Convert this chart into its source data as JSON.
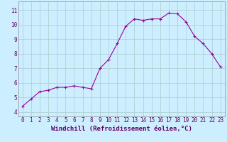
{
  "x": [
    0,
    1,
    2,
    3,
    4,
    5,
    6,
    7,
    8,
    9,
    10,
    11,
    12,
    13,
    14,
    15,
    16,
    17,
    18,
    19,
    20,
    21,
    22,
    23
  ],
  "y": [
    4.4,
    4.9,
    5.4,
    5.5,
    5.7,
    5.7,
    5.8,
    5.7,
    5.6,
    7.0,
    7.6,
    8.7,
    9.9,
    10.4,
    10.3,
    10.4,
    10.4,
    10.8,
    10.75,
    10.2,
    9.2,
    8.7,
    8.0,
    7.1
  ],
  "line_color": "#990099",
  "marker": "+",
  "marker_size": 3,
  "marker_lw": 0.8,
  "line_width": 0.8,
  "bg_color": "#cceeff",
  "grid_color": "#aacccc",
  "xlabel": "Windchill (Refroidissement éolien,°C)",
  "xlabel_fontsize": 6.5,
  "xlabel_color": "#660066",
  "xtick_labels": [
    "0",
    "1",
    "2",
    "3",
    "4",
    "5",
    "6",
    "7",
    "8",
    "9",
    "10",
    "11",
    "12",
    "13",
    "14",
    "15",
    "16",
    "17",
    "18",
    "19",
    "20",
    "21",
    "22",
    "23"
  ],
  "ytick_labels": [
    "4",
    "5",
    "6",
    "7",
    "8",
    "9",
    "10",
    "11"
  ],
  "yticks": [
    4,
    5,
    6,
    7,
    8,
    9,
    10,
    11
  ],
  "ylim": [
    3.7,
    11.6
  ],
  "xlim": [
    -0.5,
    23.5
  ],
  "tick_fontsize": 5.5,
  "tick_color": "#660066"
}
